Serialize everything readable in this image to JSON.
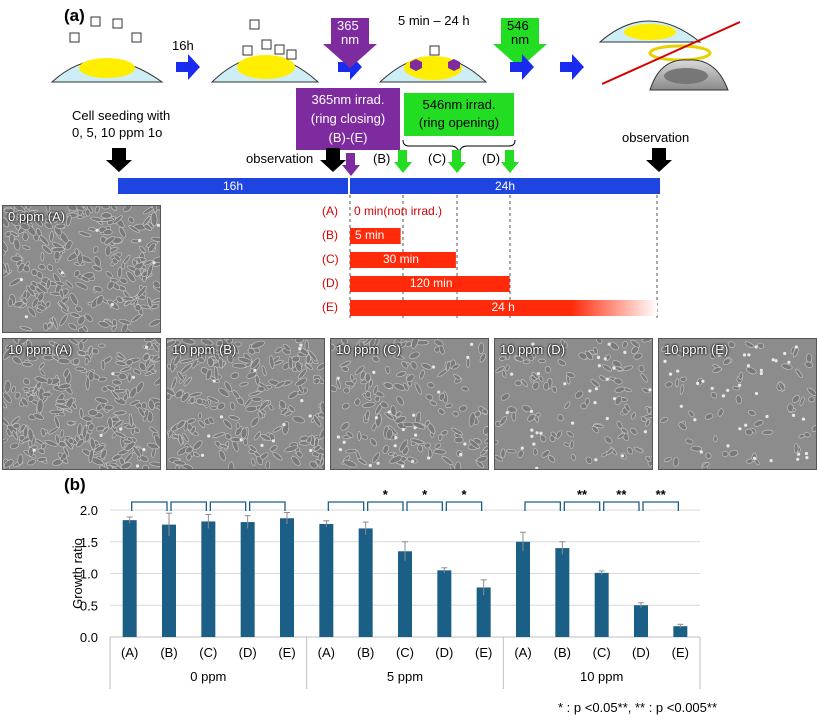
{
  "panel_a": {
    "label": "(a)",
    "step_16h": "16h",
    "uv_label_line1": "365",
    "uv_label_line2": "nm",
    "duration_label": "5 min – 24 h",
    "vis_label_line1": "546",
    "vis_label_line2": "nm",
    "seeding_line1": "Cell seeding with",
    "seeding_line2": "0, 5, 10 ppm 1o",
    "uv_box_line1": "365nm irrad.",
    "uv_box_line2": "(ring closing)",
    "uv_box_line3": "(B)-(E)",
    "vis_box_line1": "546nm irrad.",
    "vis_box_line2": "(ring opening)",
    "observation_left": "observation",
    "observation_right": "observation",
    "b_mark": "(B)",
    "c_mark": "(C)",
    "d_mark": "(D)",
    "timeline_left": "16h",
    "timeline_right": "24h",
    "conditions": [
      {
        "id": "(A)",
        "label": "0 min(non irrad.)",
        "fraction": 0
      },
      {
        "id": "(B)",
        "label": "5 min",
        "fraction": 0.165
      },
      {
        "id": "(C)",
        "label": "30 min",
        "fraction": 0.345
      },
      {
        "id": "(D)",
        "label": "120 min",
        "fraction": 0.52
      },
      {
        "id": "(E)",
        "label": "24 h",
        "fraction": 1.0
      }
    ],
    "micrographs": [
      {
        "label": "0 ppm (A)",
        "density": 1.0
      },
      {
        "label": "10 ppm (A)",
        "density": 1.0
      },
      {
        "label": "10 ppm (B)",
        "density": 0.85
      },
      {
        "label": "10 ppm (C)",
        "density": 0.6
      },
      {
        "label": "10 ppm (D)",
        "density": 0.45
      },
      {
        "label": "10 ppm (E)",
        "density": 0.25
      }
    ],
    "colors": {
      "blue_arrow": "#1a2bf0",
      "timeline": "#1f45e0",
      "purple": "#7f2ba0",
      "green": "#22dd22",
      "red_bar": "#ff2a0a"
    }
  },
  "chart_data": {
    "label": "(b)",
    "type": "bar",
    "ylabel": "Growth ratio",
    "ylim": [
      0,
      2.0
    ],
    "yticks": [
      "0.0",
      "0.5",
      "1.0",
      "1.5",
      "2.0"
    ],
    "groups": [
      "0 ppm",
      "5 ppm",
      "10 ppm"
    ],
    "categories": [
      "(A)",
      "(B)",
      "(C)",
      "(D)",
      "(E)"
    ],
    "values": [
      [
        1.84,
        1.77,
        1.82,
        1.81,
        1.87
      ],
      [
        1.78,
        1.71,
        1.35,
        1.05,
        0.78
      ],
      [
        1.5,
        1.4,
        1.01,
        0.5,
        0.17
      ]
    ],
    "errors": [
      [
        0.05,
        0.18,
        0.11,
        0.1,
        0.09
      ],
      [
        0.05,
        0.1,
        0.15,
        0.04,
        0.12
      ],
      [
        0.15,
        0.1,
        0.03,
        0.04,
        0.03
      ]
    ],
    "significance": [
      [
        "",
        "",
        "",
        ""
      ],
      [
        "",
        "*",
        "*",
        "*"
      ],
      [
        "",
        "**",
        "**",
        "**"
      ]
    ],
    "bar_color": "#1c5f86",
    "grid": true,
    "footnote": "* : p <0.05**, ** : p <0.005**"
  }
}
